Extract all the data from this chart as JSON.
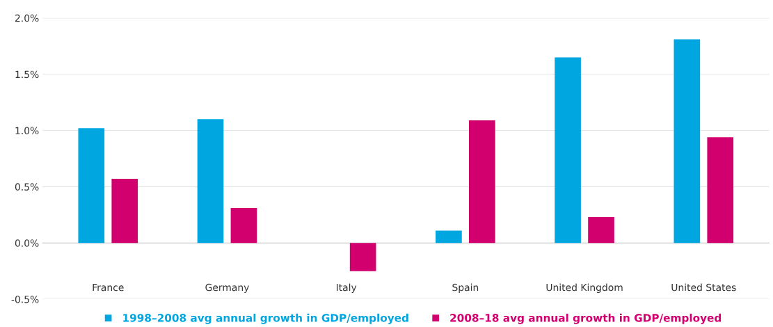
{
  "chart_data": {
    "type": "bar",
    "categories": [
      "France",
      "Germany",
      "Italy",
      "Spain",
      "United Kingdom",
      "United States"
    ],
    "series": [
      {
        "name": "1998–2008 avg annual growth in GDP/employed",
        "color": "#00a6e0",
        "values": [
          1.02,
          1.1,
          0.0,
          0.11,
          1.65,
          1.81
        ]
      },
      {
        "name": "2008–18 avg annual growth in GDP/employed",
        "color": "#d2006e",
        "values": [
          0.57,
          0.31,
          -0.25,
          1.09,
          0.23,
          0.94
        ]
      }
    ],
    "ylim": [
      -0.5,
      2.0
    ],
    "yticks": [
      {
        "value": -0.5,
        "label": "-0.5%"
      },
      {
        "value": 0,
        "label": "0.0%"
      },
      {
        "value": 0.5,
        "label": "0.5%"
      },
      {
        "value": 1.0,
        "label": "1.0%"
      },
      {
        "value": 1.5,
        "label": "1.5%"
      },
      {
        "value": 2.0,
        "label": "2.0%"
      }
    ],
    "grid": "y",
    "legend": "bottom",
    "marker": "square"
  }
}
